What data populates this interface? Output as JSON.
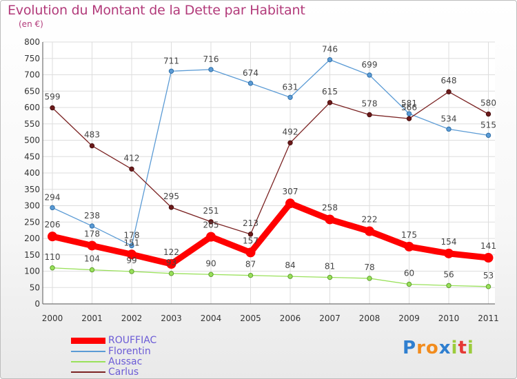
{
  "chart_data": {
    "type": "line",
    "title": "Evolution du Montant de la Dette par Habitant",
    "subtitle": "(en €)",
    "categories": [
      "2000",
      "2001",
      "2002",
      "2003",
      "2004",
      "2005",
      "2006",
      "2007",
      "2008",
      "2009",
      "2010",
      "2011"
    ],
    "ylim": [
      0,
      800
    ],
    "yticks": [
      0,
      50,
      100,
      150,
      200,
      250,
      300,
      350,
      400,
      450,
      500,
      550,
      600,
      650,
      700,
      750,
      800
    ],
    "grid": true,
    "legend_position": "bottom-left",
    "series": [
      {
        "name": "ROUFFIAC",
        "color": "#ff0000",
        "values": [
          206,
          178,
          151,
          122,
          205,
          157,
          307,
          258,
          222,
          175,
          154,
          141
        ]
      },
      {
        "name": "Florentin",
        "color": "#5b9bd5",
        "values": [
          294,
          238,
          178,
          711,
          716,
          674,
          631,
          746,
          699,
          581,
          534,
          515
        ]
      },
      {
        "name": "Aussac",
        "color": "#99e15a",
        "values": [
          110,
          104,
          99,
          93,
          90,
          87,
          84,
          81,
          78,
          60,
          56,
          53
        ]
      },
      {
        "name": "Carlus",
        "color": "#7b2323",
        "values": [
          599,
          483,
          412,
          295,
          251,
          213,
          492,
          615,
          578,
          566,
          648,
          580
        ]
      }
    ]
  },
  "logo": {
    "text": "Proxiti",
    "letters": [
      "P",
      "r",
      "o",
      "x",
      "i",
      "t",
      "i"
    ],
    "colors": [
      "#2f7fd0",
      "#f28c1e",
      "#f28c1e",
      "#2f7fd0",
      "#9ccc3c",
      "#e53935",
      "#9ccc3c"
    ]
  }
}
